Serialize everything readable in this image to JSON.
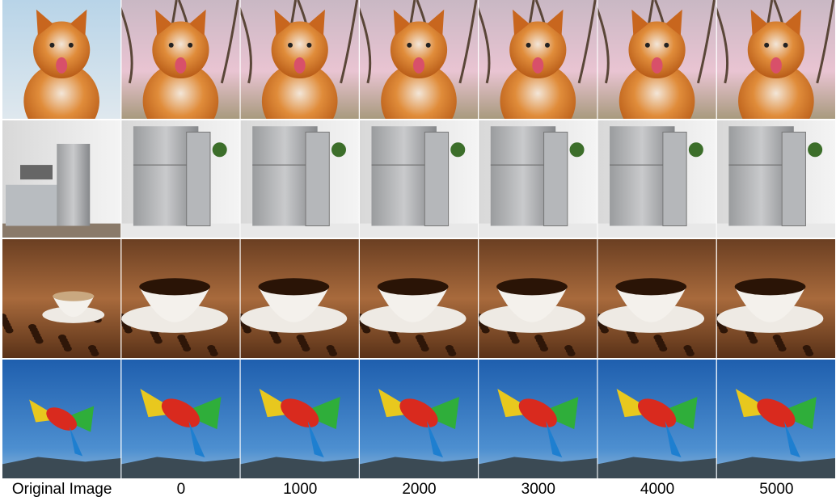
{
  "columns": [
    "Original Image",
    "0",
    "1000",
    "2000",
    "3000",
    "4000",
    "5000"
  ]
}
